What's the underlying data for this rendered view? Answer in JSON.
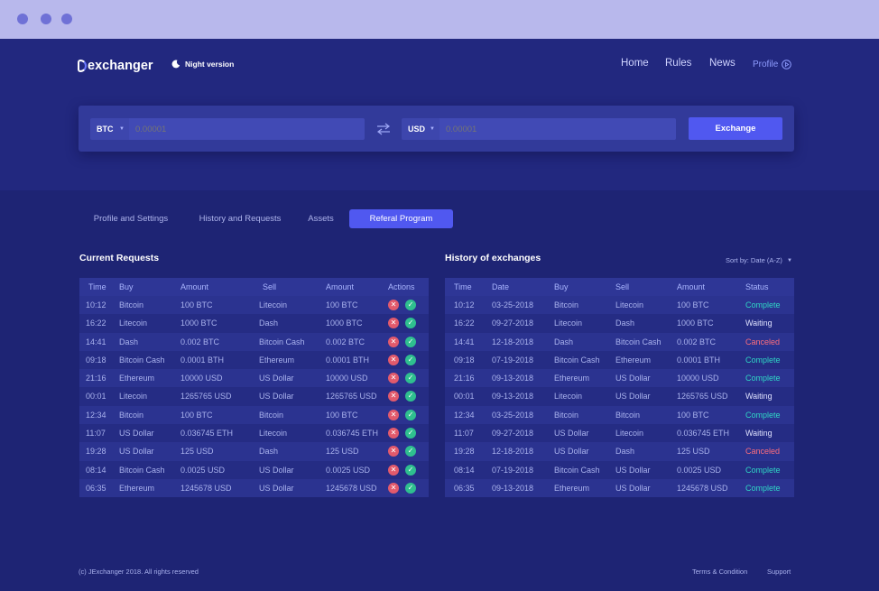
{
  "window": {
    "controls": [
      "close",
      "minimize",
      "maximize"
    ]
  },
  "header": {
    "logo_text": "exchanger",
    "night_label": "Night version",
    "nav": [
      "Home",
      "Rules",
      "News",
      "Profile"
    ]
  },
  "exchange": {
    "from_currency": "BTC",
    "from_placeholder": "0.00001",
    "to_currency": "USD",
    "to_placeholder": "0.00001",
    "button": "Exchange"
  },
  "tabs": [
    {
      "label": "Profile and Settings",
      "active": false
    },
    {
      "label": "History and Requests",
      "active": false
    },
    {
      "label": "Assets",
      "active": false
    },
    {
      "label": "Referal Program",
      "active": true
    }
  ],
  "current_requests": {
    "title": "Current Requests",
    "columns": [
      "Time",
      "Buy",
      "Amount",
      "Sell",
      "Amount",
      "Actions"
    ],
    "rows": [
      [
        "10:12",
        "Bitcoin",
        "100 BTC",
        "Litecoin",
        "100 BTC"
      ],
      [
        "16:22",
        "Litecoin",
        "1000 BTC",
        "Dash",
        "1000 BTC"
      ],
      [
        "14:41",
        "Dash",
        "0.002 BTC",
        "Bitcoin Cash",
        "0.002 BTC"
      ],
      [
        "09:18",
        "Bitcoin Cash",
        "0.0001 BTH",
        "Ethereum",
        "0.0001 BTH"
      ],
      [
        "21:16",
        "Ethereum",
        "10000 USD",
        "US Dollar",
        "10000 USD"
      ],
      [
        "00:01",
        "Litecoin",
        "1265765 USD",
        "US Dollar",
        "1265765 USD"
      ],
      [
        "12:34",
        "Bitcoin",
        "100 BTC",
        "Bitcoin",
        "100 BTC"
      ],
      [
        "11:07",
        "US Dollar",
        "0.036745 ETH",
        "Litecoin",
        "0.036745 ETH"
      ],
      [
        "19:28",
        "US Dollar",
        "125 USD",
        "Dash",
        "125 USD"
      ],
      [
        "08:14",
        "Bitcoin Cash",
        "0.0025 USD",
        "US Dollar",
        "0.0025 USD"
      ],
      [
        "06:35",
        "Ethereum",
        "1245678 USD",
        "US Dollar",
        "1245678 USD"
      ]
    ]
  },
  "history": {
    "title": "History of exchanges",
    "sort_label": "Sort by: Date (A-Z)",
    "columns": [
      "Time",
      "Date",
      "Buy",
      "Sell",
      "Amount",
      "Status"
    ],
    "rows": [
      [
        "10:12",
        "03-25-2018",
        "Bitcoin",
        "Litecoin",
        "100 BTC",
        "Complete"
      ],
      [
        "16:22",
        "09-27-2018",
        "Litecoin",
        "Dash",
        "1000 BTC",
        "Waiting"
      ],
      [
        "14:41",
        "12-18-2018",
        "Dash",
        "Bitcoin Cash",
        "0.002 BTC",
        "Canceled"
      ],
      [
        "09:18",
        "07-19-2018",
        "Bitcoin Cash",
        "Ethereum",
        "0.0001 BTH",
        "Complete"
      ],
      [
        "21:16",
        "09-13-2018",
        "Ethereum",
        "US Dollar",
        "10000 USD",
        "Complete"
      ],
      [
        "00:01",
        "09-13-2018",
        "Litecoin",
        "US Dollar",
        "1265765 USD",
        "Waiting"
      ],
      [
        "12:34",
        "03-25-2018",
        "Bitcoin",
        "Bitcoin",
        "100 BTC",
        "Complete"
      ],
      [
        "11:07",
        "09-27-2018",
        "US Dollar",
        "Litecoin",
        "0.036745 ETH",
        "Waiting"
      ],
      [
        "19:28",
        "12-18-2018",
        "US Dollar",
        "Dash",
        "125 USD",
        "Canceled"
      ],
      [
        "08:14",
        "07-19-2018",
        "Bitcoin Cash",
        "US Dollar",
        "0.0025 USD",
        "Complete"
      ],
      [
        "06:35",
        "09-13-2018",
        "Ethereum",
        "US Dollar",
        "1245678 USD",
        "Complete"
      ]
    ]
  },
  "footer": {
    "copyright": "(c)  JExchanger 2018. All rights reserved",
    "terms": "Terms & Condition",
    "support": "Support"
  },
  "colors": {
    "background": "#1e2474",
    "accent": "#5058f0",
    "complete": "#2fd8c6",
    "canceled": "#ff6e7c",
    "titlebar": "#b8b8ec"
  }
}
